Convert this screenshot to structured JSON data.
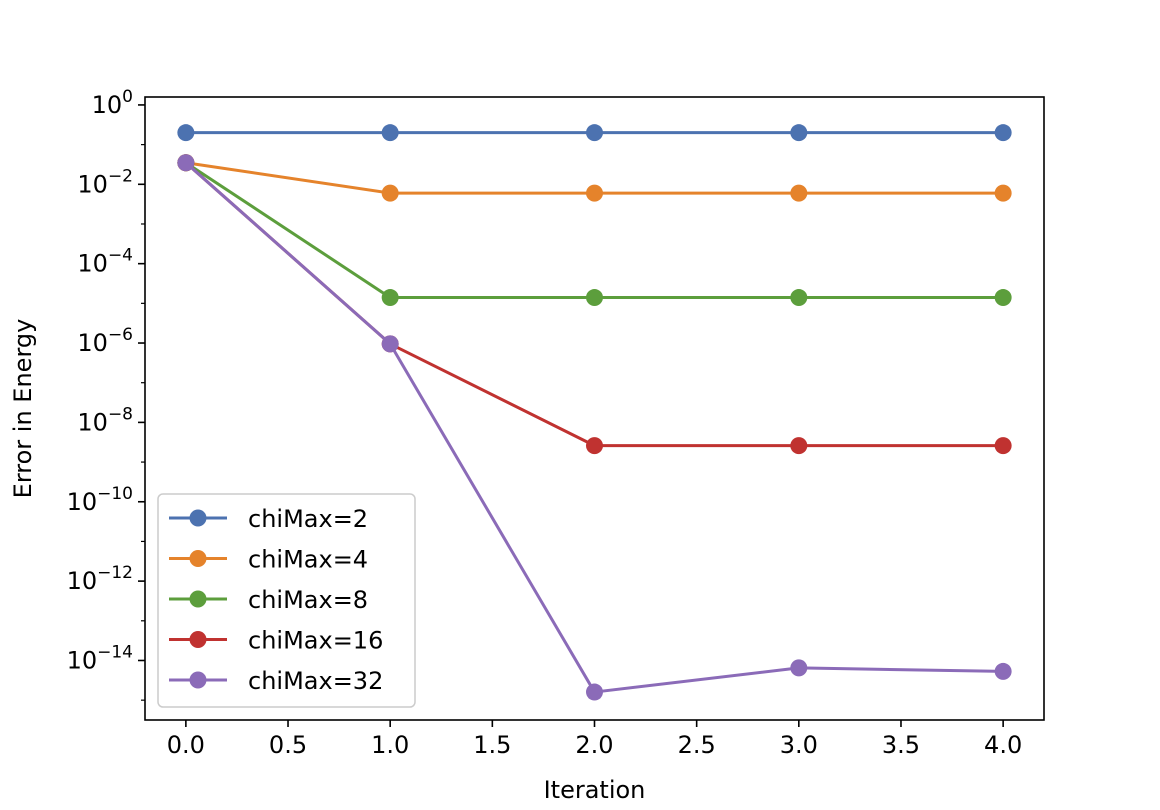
{
  "chart_data": {
    "type": "line",
    "title": "",
    "xlabel": "Iteration",
    "ylabel": "Error in Energy",
    "x": [
      0,
      1,
      2,
      3,
      4
    ],
    "xlim": [
      -0.2,
      4.2
    ],
    "ylim_log10": [
      -15.5,
      0.2
    ],
    "yscale": "log",
    "x_ticks": [
      "0.0",
      "0.5",
      "1.0",
      "1.5",
      "2.0",
      "2.5",
      "3.0",
      "3.5",
      "4.0"
    ],
    "y_ticks": [
      {
        "base": "10",
        "exp": "0"
      },
      {
        "base": "10",
        "exp": "−2"
      },
      {
        "base": "10",
        "exp": "−4"
      },
      {
        "base": "10",
        "exp": "−6"
      },
      {
        "base": "10",
        "exp": "−8"
      },
      {
        "base": "10",
        "exp": "−10"
      },
      {
        "base": "10",
        "exp": "−12"
      },
      {
        "base": "10",
        "exp": "−14"
      }
    ],
    "grid": false,
    "legend_position": "lower-left",
    "series": [
      {
        "name": "chiMax=2",
        "color": "#4c72b0",
        "values": [
          0.2,
          0.2,
          0.2,
          0.2,
          0.2
        ]
      },
      {
        "name": "chiMax=4",
        "color": "#e5832b",
        "values": [
          0.035,
          0.006,
          0.006,
          0.006,
          0.006
        ]
      },
      {
        "name": "chiMax=8",
        "color": "#5c9e3c",
        "values": [
          0.035,
          1.4e-05,
          1.4e-05,
          1.4e-05,
          1.4e-05
        ]
      },
      {
        "name": "chiMax=16",
        "color": "#c03230",
        "values": [
          0.035,
          9.5e-07,
          2.6e-09,
          2.6e-09,
          2.6e-09
        ]
      },
      {
        "name": "chiMax=32",
        "color": "#8b6bb8",
        "values": [
          0.035,
          9.5e-07,
          1.6e-15,
          6.5e-15,
          5.3e-15
        ]
      }
    ]
  }
}
